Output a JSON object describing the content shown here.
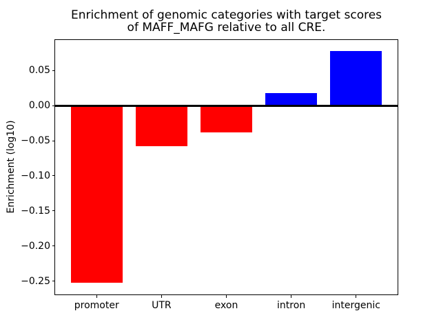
{
  "figure": {
    "title": "Enrichment of genomic categories with target scores\nof MAFF_MAFG relative to all CRE."
  },
  "chart_data": {
    "type": "bar",
    "title": "Enrichment of genomic categories with target scores of MAFF_MAFG relative to all CRE.",
    "categories": [
      "promoter",
      "UTR",
      "exon",
      "intron",
      "intergenic"
    ],
    "values": [
      -0.252,
      -0.058,
      -0.038,
      0.018,
      0.078
    ],
    "xlabel": "",
    "ylabel": "Enrichment (log10)",
    "ylim": [
      -0.269,
      0.0935
    ],
    "xlim": [
      -0.64,
      4.64
    ],
    "bar_width_fraction": 0.8,
    "yticks": [
      {
        "value": 0.05,
        "label": "0.05"
      },
      {
        "value": 0.0,
        "label": "0.00"
      },
      {
        "value": -0.05,
        "label": "−0.05"
      },
      {
        "value": -0.1,
        "label": "−0.10"
      },
      {
        "value": -0.15,
        "label": "−0.15"
      },
      {
        "value": -0.2,
        "label": "−0.20"
      },
      {
        "value": -0.25,
        "label": "−0.25"
      }
    ],
    "colors": {
      "positive_bar": "#0000ff",
      "negative_bar": "#ff0000",
      "axis": "#000000",
      "background": "#ffffff"
    },
    "zero_line": true,
    "grid": false,
    "legend": null
  }
}
